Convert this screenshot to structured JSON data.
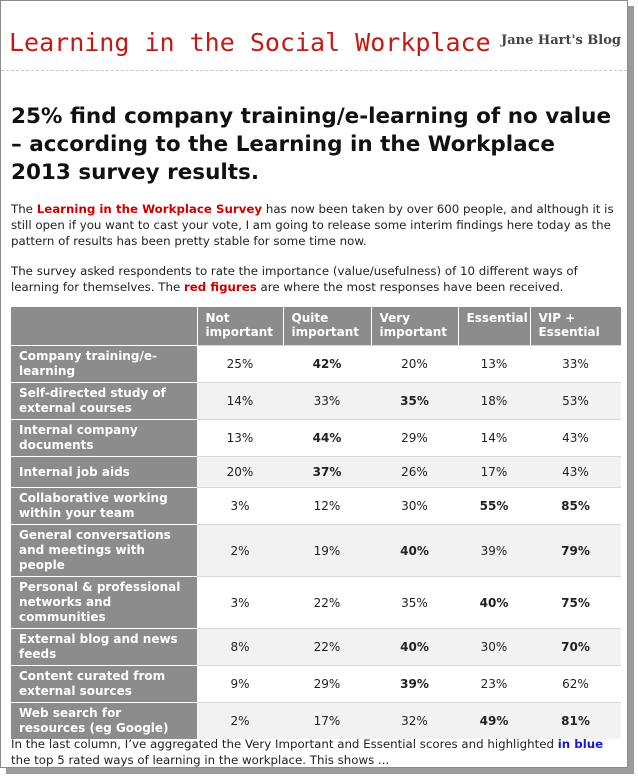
{
  "header": {
    "site_title": "Learning in the Social Workplace",
    "blog_name": "Jane Hart's Blog"
  },
  "post": {
    "title": "25% find company training/e-learning of no value – according to the Learning in the Workplace 2013 survey results.",
    "p1_before": "The ",
    "p1_link": "Learning in the Workplace Survey",
    "p1_after": "  has now been taken by over 600 people, and although it is still open if you want to cast your vote, I am going to release some interim findings here today as the pattern of results has been pretty stable for some time now.",
    "p2_before": "The survey asked respondents to rate  the importance (value/usefulness) of 10 different ways of learning for themselves. The ",
    "p2_red": "red figures",
    "p2_after": " are where the most responses have been received.",
    "p3_before": "In the last column, I’ve aggregated the Very Important and Essential scores and  highlighted ",
    "p3_blue": "in blue",
    "p3_after": " the top 5 rated ways of learning in the workplace. This shows ..."
  },
  "table": {
    "headers": [
      "",
      "Not important",
      "Quite important",
      "Very important",
      "Essential",
      "VIP + Essential"
    ],
    "rows": [
      {
        "label": "Company training/e-learning",
        "cells": [
          "25%",
          "42%",
          "20%",
          "13%",
          "33%"
        ]
      },
      {
        "label": "Self-directed study of external courses",
        "cells": [
          "14%",
          "33%",
          "35%",
          "18%",
          "53%"
        ]
      },
      {
        "label": "Internal company documents",
        "cells": [
          "13%",
          "44%",
          "29%",
          "14%",
          "43%"
        ]
      },
      {
        "label": "Internal job aids",
        "cells": [
          "20%",
          "37%",
          "26%",
          "17%",
          "43%"
        ]
      },
      {
        "label": "Collaborative working within your team",
        "cells": [
          "3%",
          "12%",
          "30%",
          "55%",
          "85%"
        ]
      },
      {
        "label": "General conversations and meetings with people",
        "cells": [
          "2%",
          "19%",
          "40%",
          "39%",
          "79%"
        ]
      },
      {
        "label": "Personal & professional networks and communities",
        "cells": [
          "3%",
          "22%",
          "35%",
          "40%",
          "75%"
        ]
      },
      {
        "label": "External blog and news feeds",
        "cells": [
          "8%",
          "22%",
          "40%",
          "30%",
          "70%"
        ]
      },
      {
        "label": "Content curated from external sources",
        "cells": [
          "9%",
          "29%",
          "39%",
          "23%",
          "62%"
        ]
      },
      {
        "label": "Web search for resources (eg Google)",
        "cells": [
          "2%",
          "17%",
          "32%",
          "49%",
          "81%"
        ]
      }
    ],
    "styles": [
      [
        "red",
        "bold-red",
        "",
        "",
        ""
      ],
      [
        "",
        "red",
        "bold-red",
        "",
        ""
      ],
      [
        "",
        "bold-red",
        "red",
        "",
        ""
      ],
      [
        "",
        "bold-red",
        "red",
        "",
        ""
      ],
      [
        "",
        "",
        "red",
        "bold-red",
        "blue"
      ],
      [
        "",
        "",
        "bold-red",
        "red",
        "blue"
      ],
      [
        "",
        "",
        "red",
        "bold-red",
        "blue"
      ],
      [
        "",
        "",
        "bold-red",
        "red",
        "blue"
      ],
      [
        "",
        "red",
        "bold-red",
        "",
        ""
      ],
      [
        "",
        "",
        "red",
        "bold-red",
        "blue"
      ]
    ]
  },
  "colors": {
    "title_red": "#c11b17",
    "highlight_red": "#cc0000",
    "highlight_blue": "#1a1acc",
    "table_header_gray": "#8c8c8c"
  }
}
